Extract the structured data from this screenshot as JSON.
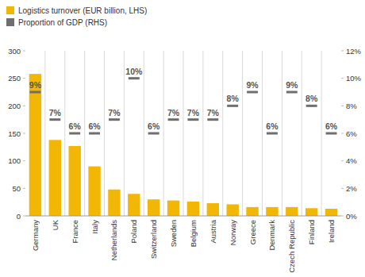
{
  "chart_data": {
    "type": "bar",
    "categories": [
      "Germany",
      "UK",
      "France",
      "Italy",
      "Netherlands",
      "Poland",
      "Switzerland",
      "Sweden",
      "Belgium",
      "Austria",
      "Norway",
      "Greece",
      "Denmark",
      "Czech Republic",
      "Finland",
      "Ireland"
    ],
    "series": [
      {
        "name": "Logistics turnover (EUR billion, LHS)",
        "type": "bar",
        "color": "#f2b705",
        "values": [
          258,
          138,
          127,
          90,
          48,
          40,
          30,
          28,
          26,
          23,
          21,
          16,
          16,
          16,
          14,
          13
        ]
      },
      {
        "name": "Proportion of GDP (RHS)",
        "type": "scatter",
        "marker": "dash",
        "color": "#6e6e6e",
        "axis": "y2",
        "data_labels": true,
        "values": [
          9,
          7,
          6,
          6,
          7,
          10,
          6,
          7,
          7,
          7,
          8,
          9,
          6,
          9,
          8,
          6
        ],
        "value_labels": [
          "9%",
          "7%",
          "6%",
          "6%",
          "7%",
          "10%",
          "6%",
          "7%",
          "7%",
          "7%",
          "8%",
          "9%",
          "6%",
          "9%",
          "8%",
          "6%"
        ]
      }
    ],
    "ylim": [
      0,
      300
    ],
    "yticks": [
      0,
      50,
      100,
      150,
      200,
      250,
      300
    ],
    "y2lim": [
      0,
      12
    ],
    "y2ticks": [
      {
        "value": 0,
        "label": "0%"
      },
      {
        "value": 2,
        "label": "2%"
      },
      {
        "value": 4,
        "label": "4%"
      },
      {
        "value": 6,
        "label": "6%"
      },
      {
        "value": 8,
        "label": "8%"
      },
      {
        "value": 10,
        "label": "10%"
      },
      {
        "value": 12,
        "label": "12%"
      }
    ],
    "grid": true,
    "legend": "top-left"
  }
}
